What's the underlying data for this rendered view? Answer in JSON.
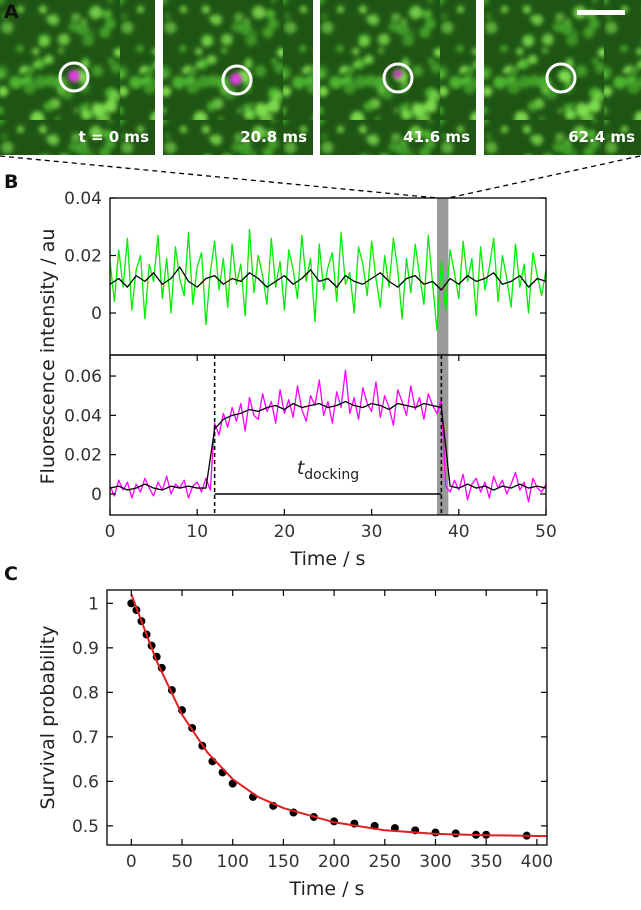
{
  "panel_a": {
    "label": "A",
    "frames": [
      "t = 0 ms",
      "20.8 ms",
      "41.6 ms",
      "62.4 ms"
    ]
  },
  "chart_data": [
    {
      "type": "line",
      "panel_label": "B",
      "ylabel": "Fluorescence intensity / au",
      "xlim": [
        0,
        50
      ],
      "ylim": [
        -0.0146,
        0.04
      ],
      "yticks": [
        0,
        0.02,
        0.04
      ],
      "highlight_x": [
        37.5,
        38.8
      ],
      "series": [
        {
          "color": "#00ee00",
          "x": [
            0,
            0.5,
            1,
            1.5,
            2,
            2.5,
            3,
            3.5,
            4,
            4.5,
            5,
            5.5,
            6,
            6.5,
            7,
            7.5,
            8,
            8.5,
            9,
            9.5,
            10,
            10.5,
            11,
            11.5,
            12,
            12.5,
            13,
            13.5,
            14,
            14.5,
            15,
            15.5,
            16,
            16.5,
            17,
            17.5,
            18,
            18.5,
            19,
            19.5,
            20,
            20.5,
            21,
            21.5,
            22,
            22.5,
            23,
            23.5,
            24,
            24.5,
            25,
            25.5,
            26,
            26.5,
            27,
            27.5,
            28,
            28.5,
            29,
            29.5,
            30,
            30.5,
            31,
            31.5,
            32,
            32.5,
            33,
            33.5,
            34,
            34.5,
            35,
            35.5,
            36,
            36.5,
            37,
            37.5,
            38,
            38.5,
            39,
            39.5,
            40,
            40.5,
            41,
            41.5,
            42,
            42.5,
            43,
            43.5,
            44,
            44.5,
            45,
            45.5,
            46,
            46.5,
            47,
            47.5,
            48,
            48.5,
            49,
            49.5,
            50
          ],
          "values": [
            0.018,
            0.004,
            0.022,
            0.009,
            0.026,
            0.001,
            0.015,
            0.02,
            -0.002,
            0.017,
            0.011,
            0.027,
            0.005,
            0.019,
            0.0,
            0.023,
            0.012,
            0.006,
            0.028,
            0.003,
            0.016,
            0.021,
            -0.004,
            0.014,
            0.025,
            0.008,
            0.019,
            0.002,
            0.024,
            0.01,
            0.017,
            -0.001,
            0.029,
            0.007,
            0.02,
            0.013,
            0.003,
            0.026,
            0.009,
            0.018,
            0.001,
            0.022,
            0.015,
            0.005,
            0.027,
            0.011,
            0.019,
            -0.003,
            0.024,
            0.008,
            0.016,
            0.021,
            0.004,
            0.028,
            0.01,
            0.014,
            0.0,
            0.023,
            0.017,
            0.006,
            0.025,
            0.012,
            0.002,
            0.02,
            0.009,
            0.026,
            0.015,
            -0.002,
            0.019,
            0.007,
            0.024,
            0.013,
            0.003,
            0.027,
            0.01,
            -0.006,
            0.018,
            0.001,
            0.022,
            0.014,
            0.005,
            0.025,
            0.011,
            0.019,
            -0.001,
            0.023,
            0.008,
            0.016,
            0.026,
            0.004,
            0.02,
            0.012,
            0.002,
            0.024,
            0.009,
            0.017,
            0.0,
            0.021,
            0.013,
            0.006,
            0.015
          ]
        },
        {
          "color": "#000000",
          "x": [
            0,
            1,
            2,
            3,
            4,
            5,
            6,
            7,
            8,
            9,
            10,
            11,
            12,
            13,
            14,
            15,
            16,
            17,
            18,
            19,
            20,
            21,
            22,
            23,
            24,
            25,
            26,
            27,
            28,
            29,
            30,
            31,
            32,
            33,
            34,
            35,
            36,
            37,
            38,
            39,
            40,
            41,
            42,
            43,
            44,
            45,
            46,
            47,
            48,
            49,
            50
          ],
          "values": [
            0.01,
            0.012,
            0.009,
            0.013,
            0.011,
            0.014,
            0.01,
            0.012,
            0.016,
            0.011,
            0.009,
            0.012,
            0.013,
            0.01,
            0.012,
            0.011,
            0.014,
            0.012,
            0.009,
            0.011,
            0.013,
            0.01,
            0.012,
            0.015,
            0.011,
            0.012,
            0.009,
            0.013,
            0.011,
            0.01,
            0.012,
            0.014,
            0.011,
            0.009,
            0.012,
            0.013,
            0.01,
            0.011,
            0.008,
            0.012,
            0.01,
            0.013,
            0.011,
            0.012,
            0.014,
            0.01,
            0.011,
            0.013,
            0.009,
            0.012,
            0.011
          ]
        }
      ]
    },
    {
      "type": "line",
      "xlabel": "Time / s",
      "xlim": [
        0,
        50
      ],
      "ylim": [
        -0.0107,
        0.0707
      ],
      "xticks": [
        0,
        10,
        20,
        30,
        40,
        50
      ],
      "yticks": [
        0,
        0.02,
        0.04,
        0.06
      ],
      "highlight_x": [
        37.5,
        38.8
      ],
      "event_x": [
        12,
        38
      ],
      "annotation": {
        "text": "t",
        "subscript": "docking"
      },
      "series": [
        {
          "color": "#ff00ff",
          "x": [
            0,
            0.5,
            1,
            1.5,
            2,
            2.5,
            3,
            3.5,
            4,
            4.5,
            5,
            5.5,
            6,
            6.5,
            7,
            7.5,
            8,
            8.5,
            9,
            9.5,
            10,
            10.5,
            11,
            11.5,
            12,
            12.5,
            13,
            13.5,
            14,
            14.5,
            15,
            15.5,
            16,
            16.5,
            17,
            17.5,
            18,
            18.5,
            19,
            19.5,
            20,
            20.5,
            21,
            21.5,
            22,
            22.5,
            23,
            23.5,
            24,
            24.5,
            25,
            25.5,
            26,
            26.5,
            27,
            27.5,
            28,
            28.5,
            29,
            29.5,
            30,
            30.5,
            31,
            31.5,
            32,
            32.5,
            33,
            33.5,
            34,
            34.5,
            35,
            35.5,
            36,
            36.5,
            37,
            37.5,
            38,
            38.5,
            39,
            39.5,
            40,
            40.5,
            41,
            41.5,
            42,
            42.5,
            43,
            43.5,
            44,
            44.5,
            45,
            45.5,
            46,
            46.5,
            47,
            47.5,
            48,
            48.5,
            49,
            49.5,
            50
          ],
          "values": [
            0.004,
            -0.001,
            0.007,
            0.002,
            0.006,
            -0.002,
            0.005,
            0.001,
            0.008,
            0.003,
            -0.001,
            0.006,
            0.002,
            0.009,
            0.0,
            0.005,
            0.003,
            0.007,
            -0.002,
            0.004,
            0.006,
            0.001,
            0.008,
            0.002,
            0.036,
            0.03,
            0.041,
            0.034,
            0.044,
            0.037,
            0.046,
            0.032,
            0.049,
            0.04,
            0.038,
            0.051,
            0.042,
            0.047,
            0.036,
            0.053,
            0.041,
            0.048,
            0.039,
            0.055,
            0.043,
            0.037,
            0.05,
            0.045,
            0.058,
            0.04,
            0.047,
            0.036,
            0.052,
            0.044,
            0.063,
            0.041,
            0.049,
            0.038,
            0.054,
            0.046,
            0.042,
            0.057,
            0.039,
            0.05,
            0.044,
            0.035,
            0.053,
            0.047,
            0.04,
            0.055,
            0.043,
            0.049,
            0.038,
            0.051,
            0.045,
            0.041,
            0.048,
            0.004,
            0.001,
            0.007,
            0.002,
            0.01,
            -0.003,
            0.005,
            0.008,
            0.001,
            0.006,
            -0.002,
            0.009,
            0.003,
            0.007,
            0.0,
            0.005,
            0.011,
            0.002,
            0.006,
            -0.004,
            0.008,
            0.003,
            0.001,
            0.005
          ]
        },
        {
          "color": "#000000",
          "x": [
            0,
            1,
            2,
            3,
            4,
            5,
            6,
            7,
            8,
            9,
            10,
            11,
            12,
            13,
            14,
            15,
            16,
            17,
            18,
            19,
            20,
            21,
            22,
            23,
            24,
            25,
            26,
            27,
            28,
            29,
            30,
            31,
            32,
            33,
            34,
            35,
            36,
            37,
            38,
            39,
            40,
            41,
            42,
            43,
            44,
            45,
            46,
            47,
            48,
            49,
            50
          ],
          "values": [
            0.003,
            0.004,
            0.002,
            0.003,
            0.005,
            0.003,
            0.002,
            0.004,
            0.003,
            0.004,
            0.003,
            0.003,
            0.033,
            0.038,
            0.04,
            0.041,
            0.043,
            0.042,
            0.044,
            0.045,
            0.043,
            0.046,
            0.044,
            0.045,
            0.046,
            0.044,
            0.045,
            0.047,
            0.045,
            0.044,
            0.046,
            0.045,
            0.043,
            0.046,
            0.045,
            0.044,
            0.046,
            0.045,
            0.044,
            0.004,
            0.003,
            0.005,
            0.003,
            0.004,
            0.002,
            0.004,
            0.003,
            0.005,
            0.003,
            0.004,
            0.003
          ]
        }
      ]
    },
    {
      "type": "scatter",
      "panel_label": "C",
      "xlabel": "Time / s",
      "ylabel": "Survival probability",
      "xlim": [
        -24,
        410
      ],
      "ylim": [
        0.457,
        1.03
      ],
      "xticks": [
        0,
        50,
        100,
        150,
        200,
        250,
        300,
        350,
        400
      ],
      "yticks": [
        0.5,
        0.6,
        0.7,
        0.8,
        0.9,
        1
      ],
      "series": [
        {
          "color": "#000000",
          "mode": "markers",
          "x": [
            0,
            5,
            10,
            15,
            20,
            25,
            30,
            40,
            50,
            60,
            70,
            80,
            90,
            100,
            120,
            140,
            160,
            180,
            200,
            220,
            240,
            260,
            280,
            300,
            320,
            340,
            350,
            390
          ],
          "values": [
            1.0,
            0.985,
            0.96,
            0.93,
            0.905,
            0.88,
            0.855,
            0.805,
            0.76,
            0.72,
            0.68,
            0.645,
            0.62,
            0.595,
            0.565,
            0.545,
            0.53,
            0.52,
            0.51,
            0.505,
            0.5,
            0.495,
            0.49,
            0.485,
            0.483,
            0.48,
            0.48,
            0.478
          ]
        },
        {
          "color": "#e02020",
          "mode": "line",
          "x": [
            0,
            10,
            25,
            50,
            75,
            100,
            125,
            150,
            200,
            250,
            300,
            350,
            410
          ],
          "values": [
            1.02,
            0.96,
            0.87,
            0.75,
            0.665,
            0.605,
            0.565,
            0.54,
            0.508,
            0.49,
            0.482,
            0.479,
            0.477
          ]
        }
      ]
    }
  ]
}
